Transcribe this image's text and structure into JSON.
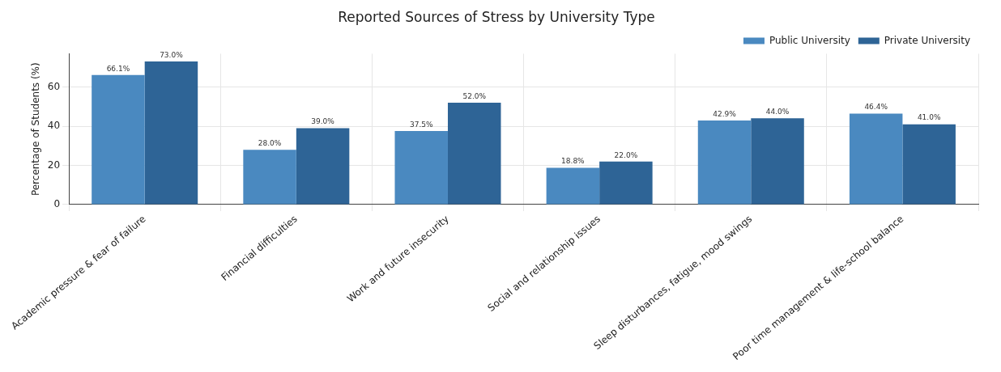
{
  "chart_data": {
    "type": "bar",
    "title": "Reported Sources of Stress by University Type",
    "ylabel": "Percentage of Students (%)",
    "categories": [
      "Academic pressure & fear of failure",
      "Financial difficulties",
      "Work and future insecurity",
      "Social and relationship issues",
      "Sleep disturbances, fatigue, mood swings",
      "Poor time management & life-school balance"
    ],
    "series": [
      {
        "name": "Public University",
        "color": "#4a89c0",
        "values": [
          66.1,
          28.0,
          37.5,
          18.8,
          42.9,
          46.4
        ],
        "value_labels": [
          "66.1%",
          "28.0%",
          "37.5%",
          "18.8%",
          "42.9%",
          "46.4%"
        ]
      },
      {
        "name": "Private University",
        "color": "#2e6496",
        "values": [
          73.0,
          39.0,
          52.0,
          22.0,
          44.0,
          41.0
        ],
        "value_labels": [
          "73.0%",
          "39.0%",
          "52.0%",
          "22.0%",
          "44.0%",
          "41.0%"
        ]
      }
    ],
    "ylim": [
      0,
      77
    ],
    "yticks": [
      0,
      20,
      40,
      60
    ],
    "grid": true,
    "legend": "top right"
  }
}
